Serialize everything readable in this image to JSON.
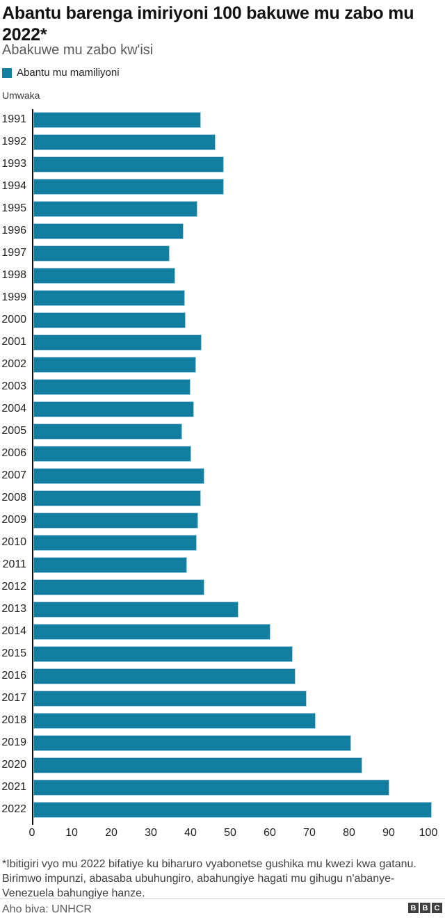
{
  "header": {
    "title": "Abantu barenga imiriyoni 100 bakuwe mu zabo mu 2022*",
    "title_lines": [
      "Abantu barenga imiriyoni 100 bakuwe mu zabo mu",
      "2022*"
    ],
    "subtitle": "Abakuwe mu zabo kw'isi"
  },
  "legend": {
    "label": "Abantu mu mamiliyoni",
    "color": "#137fa0"
  },
  "chart_data": {
    "type": "bar",
    "orientation": "horizontal",
    "title": "Abantu barenga imiriyoni 100 bakuwe mu zabo mu 2022*",
    "subtitle": "Abakuwe mu zabo kw'isi",
    "series_name": "Abantu mu mamiliyoni",
    "ylabel": "Umwaka",
    "xlabel": "",
    "categories": [
      "1991",
      "1992",
      "1993",
      "1994",
      "1995",
      "1996",
      "1997",
      "1998",
      "1999",
      "2000",
      "2001",
      "2002",
      "2003",
      "2004",
      "2005",
      "2006",
      "2007",
      "2008",
      "2009",
      "2010",
      "2011",
      "2012",
      "2013",
      "2014",
      "2015",
      "2016",
      "2017",
      "2018",
      "2019",
      "2020",
      "2021",
      "2022"
    ],
    "values": [
      42.3,
      46.0,
      48.1,
      48.1,
      41.4,
      37.9,
      34.3,
      35.8,
      38.2,
      38.5,
      42.5,
      41.0,
      39.7,
      40.5,
      37.5,
      39.9,
      43.1,
      42.3,
      41.5,
      41.3,
      38.8,
      43.1,
      51.7,
      59.8,
      65.5,
      66.1,
      69.0,
      71.3,
      80.1,
      83.0,
      89.9,
      100.6
    ],
    "xlim": [
      0,
      100
    ],
    "x_ticks": [
      0,
      10,
      20,
      30,
      40,
      50,
      60,
      70,
      80,
      90,
      100
    ],
    "grid": false,
    "legend_position": "top-left",
    "bar_color": "#137fa0"
  },
  "footer": {
    "footnote": "*Ibitigiri vyo mu 2022 bifatiye ku biharuro vyabonetse gushika mu kwezi kwa gatanu. Birimwo impunzi, abasaba ubuhungiro, abahungiye hagati mu gihugu n'abanye-Venezuela bahungiye hanze.",
    "footnote_lines": [
      "*Ibitigiri vyo mu 2022 bifatiye ku biharuro vyabonetse gushika mu kwezi kwa gatanu.",
      "Birimwo impunzi, abasaba ubuhungiro, abahungiye hagati mu gihugu n'abanye-",
      "Venezuela bahungiye hanze."
    ],
    "source": "Aho biva: UNHCR",
    "logo_letters": [
      "B",
      "B",
      "C"
    ]
  }
}
